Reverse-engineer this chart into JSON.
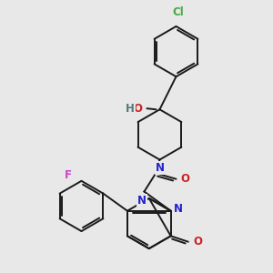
{
  "bg_color": "#e8e8e8",
  "bond_color": "#1a1a1a",
  "atom_colors": {
    "N": "#2222cc",
    "O": "#cc2222",
    "Cl": "#44aa44",
    "F": "#cc44cc",
    "H": "#557777"
  },
  "line_width": 1.4,
  "font_size": 8.5
}
